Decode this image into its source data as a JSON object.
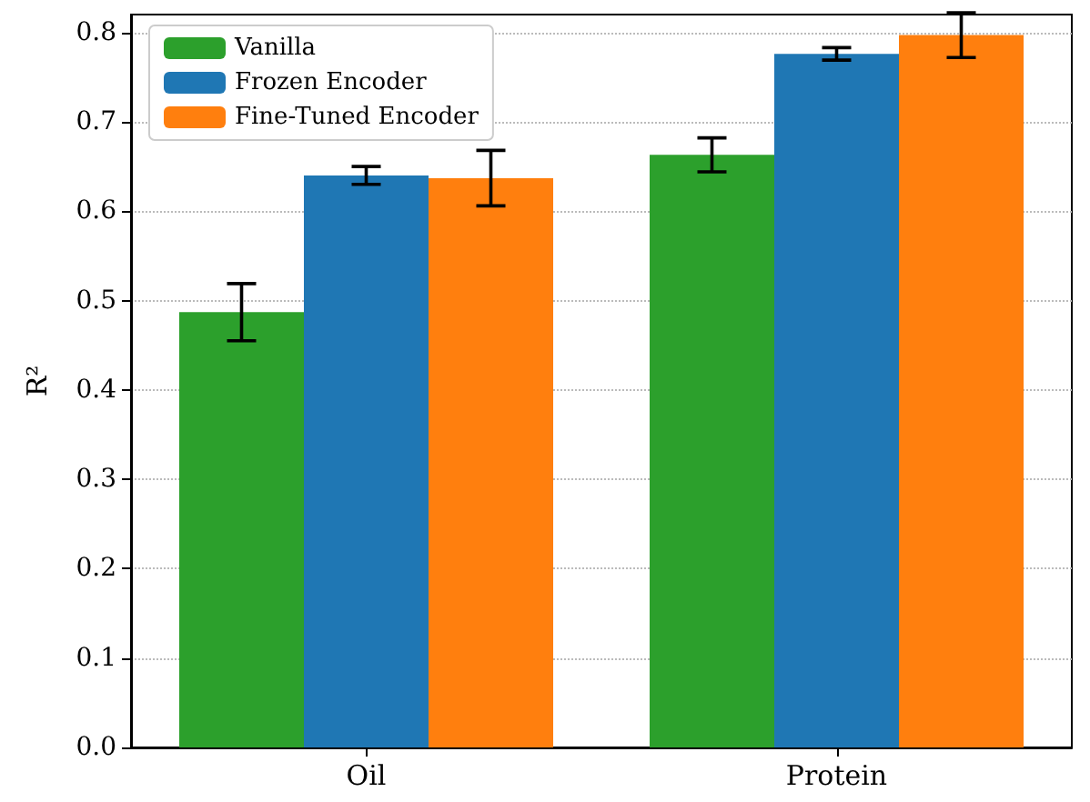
{
  "chart_data": {
    "type": "bar",
    "ylabel": "R²",
    "categories": [
      "Oil",
      "Protein"
    ],
    "series": [
      {
        "name": "Vanilla",
        "color": "#2ca02c",
        "values": [
          0.487,
          0.663
        ],
        "errors": [
          0.032,
          0.019
        ]
      },
      {
        "name": "Frozen Encoder",
        "color": "#1f77b4",
        "values": [
          0.64,
          0.776
        ],
        "errors": [
          0.01,
          0.007
        ]
      },
      {
        "name": "Fine-Tuned Encoder",
        "color": "#ff7f0e",
        "values": [
          0.637,
          0.797
        ],
        "errors": [
          0.031,
          0.025
        ]
      }
    ],
    "ylim": [
      0,
      0.82
    ],
    "yticks": [
      {
        "value": 0,
        "label": "0.0"
      },
      0.1,
      0.2,
      0.3,
      0.4,
      0.5,
      0.6,
      0.7,
      0.8
    ],
    "grid": "y",
    "legend": "top left"
  }
}
